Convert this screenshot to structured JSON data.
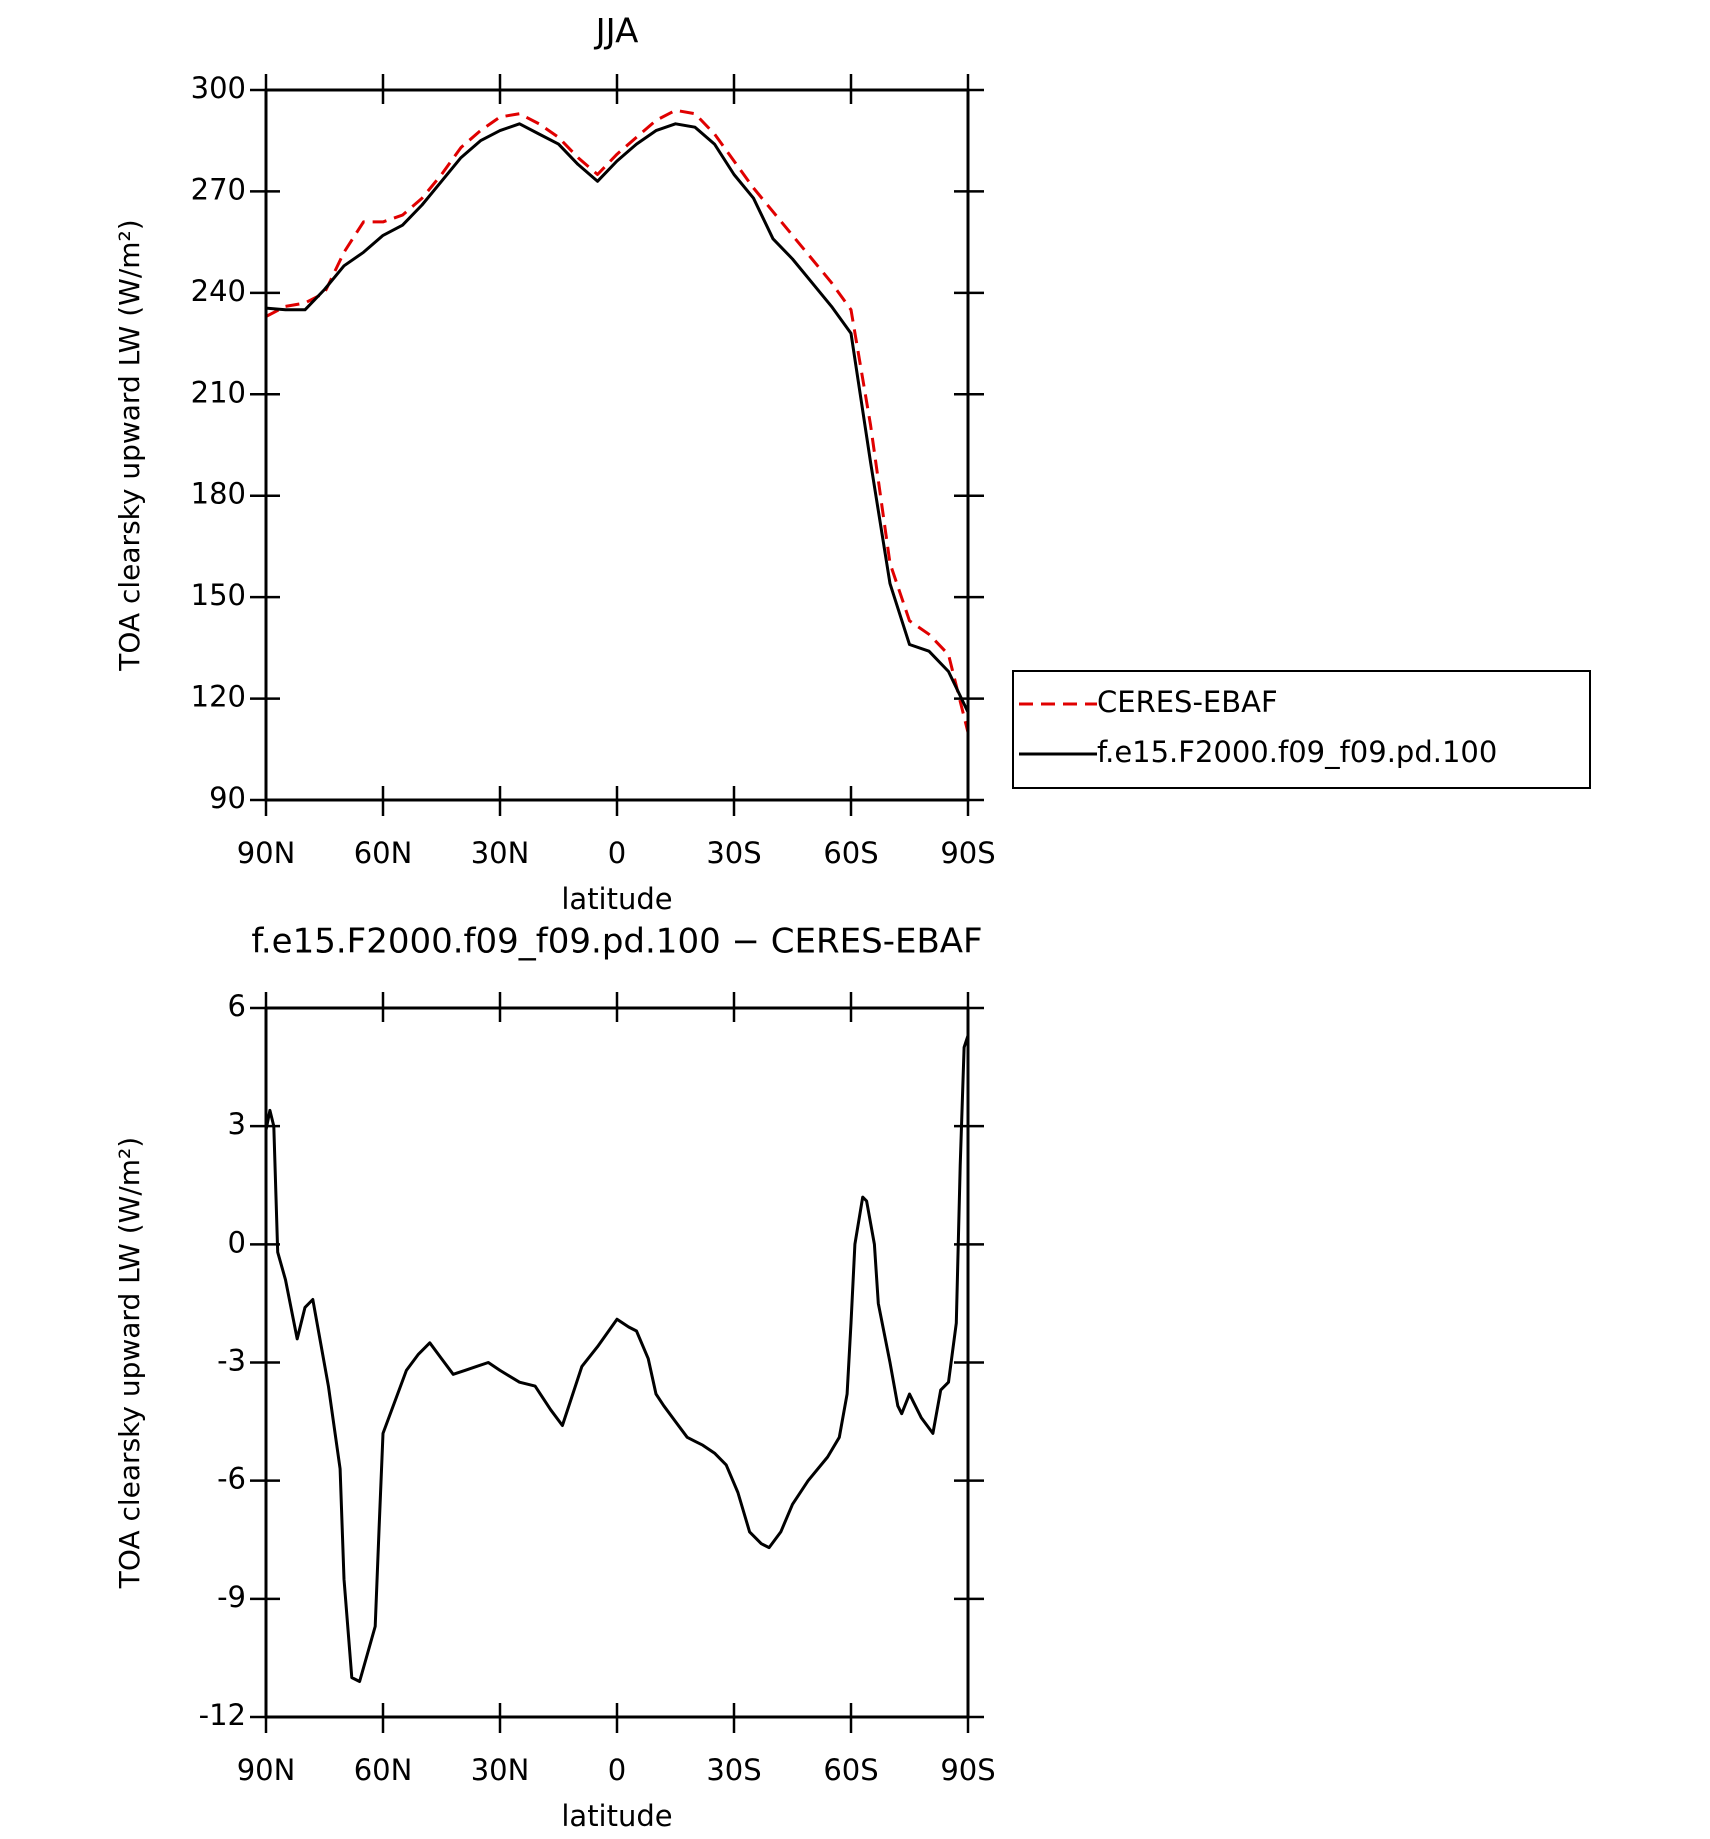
{
  "chart_data": [
    {
      "type": "line",
      "title": "JJA",
      "x_label": "latitude",
      "y_label": "TOA clearsky upward LW (W/m²)",
      "x": [
        90,
        85,
        80,
        75,
        70,
        65,
        60,
        55,
        50,
        45,
        40,
        35,
        30,
        25,
        20,
        15,
        10,
        5,
        0,
        -5,
        -10,
        -15,
        -20,
        -25,
        -30,
        -35,
        -40,
        -45,
        -50,
        -55,
        -60,
        -65,
        -70,
        -75,
        -80,
        -85,
        -90
      ],
      "series": [
        {
          "name": "CERES-EBAF",
          "color": "#e00000",
          "linestyle": "dashed",
          "values": [
            233,
            236,
            237,
            240,
            252,
            261,
            261,
            263,
            268,
            275,
            283,
            288,
            292,
            293,
            290,
            286,
            280,
            275,
            281,
            286,
            291,
            294,
            293,
            287,
            279,
            271,
            264,
            257,
            250,
            243,
            235,
            201,
            160,
            143,
            139,
            133,
            110
          ]
        },
        {
          "name": "f.e15.F2000.f09_f09.pd.100",
          "color": "#000000",
          "linestyle": "solid",
          "values": [
            235.5,
            235,
            235,
            241,
            248,
            252,
            257,
            260,
            266,
            273,
            280,
            285,
            288,
            290,
            287,
            284,
            278,
            273,
            279,
            284,
            288,
            290,
            289,
            284,
            275,
            268,
            256,
            250,
            243,
            236,
            228,
            190,
            154,
            136,
            134,
            128,
            116
          ]
        }
      ],
      "xlim": [
        90,
        -90
      ],
      "xticks": [
        {
          "value": 90,
          "label": "90N"
        },
        {
          "value": 60,
          "label": "60N"
        },
        {
          "value": 30,
          "label": "30N"
        },
        0,
        {
          "value": -30,
          "label": "30S"
        },
        {
          "value": -60,
          "label": "60S"
        },
        {
          "value": -90,
          "label": "90S"
        }
      ],
      "ylim": [
        90,
        300
      ],
      "yticks": [
        90,
        120,
        150,
        180,
        210,
        240,
        270,
        300
      ],
      "legend": "outside right"
    },
    {
      "type": "line",
      "title": "f.e15.F2000.f09_f09.pd.100 − CERES-EBAF",
      "x_label": "latitude",
      "y_label": "TOA clearsky upward LW (W/m²)",
      "x": [
        90,
        89,
        88,
        87,
        85,
        82,
        80,
        78,
        76,
        74,
        71,
        70,
        68,
        66,
        64,
        62,
        61,
        60,
        57,
        54,
        51,
        48,
        45,
        42,
        39,
        36,
        33,
        30,
        25,
        21,
        17,
        14,
        9,
        5,
        0,
        -3,
        -5,
        -8,
        -10,
        -12,
        -15,
        -18,
        -20,
        -22,
        -25,
        -28,
        -31,
        -34,
        -37,
        -39,
        -42,
        -45,
        -49,
        -54,
        -57,
        -59,
        -60,
        -61,
        -63,
        -64,
        -66,
        -67,
        -70,
        -72,
        -73,
        -75,
        -76,
        -78,
        -81,
        -83,
        -85,
        -87,
        -88,
        -89,
        -90
      ],
      "series": [
        {
          "color": "#000000",
          "linestyle": "solid",
          "values": [
            2.9,
            3.4,
            3.0,
            -0.2,
            -0.9,
            -2.4,
            -1.6,
            -1.4,
            -2.5,
            -3.6,
            -5.7,
            -8.5,
            -11.0,
            -11.1,
            -10.4,
            -9.7,
            -7.2,
            -4.8,
            -4.0,
            -3.2,
            -2.8,
            -2.5,
            -2.9,
            -3.3,
            -3.2,
            -3.1,
            -3.0,
            -3.2,
            -3.5,
            -3.6,
            -4.2,
            -4.6,
            -3.1,
            -2.6,
            -1.9,
            -2.1,
            -2.2,
            -2.9,
            -3.8,
            -4.1,
            -4.5,
            -4.9,
            -5.0,
            -5.1,
            -5.3,
            -5.6,
            -6.3,
            -7.3,
            -7.6,
            -7.7,
            -7.3,
            -6.6,
            -6.0,
            -5.4,
            -4.9,
            -3.8,
            -2.0,
            0.0,
            1.2,
            1.1,
            0.0,
            -1.5,
            -3.0,
            -4.1,
            -4.3,
            -3.8,
            -4.0,
            -4.4,
            -4.8,
            -3.7,
            -3.5,
            -2.0,
            2.0,
            5.0,
            5.3
          ]
        }
      ],
      "xlim": [
        90,
        -90
      ],
      "xticks": [
        {
          "value": 90,
          "label": "90N"
        },
        {
          "value": 60,
          "label": "60N"
        },
        {
          "value": 30,
          "label": "30N"
        },
        0,
        {
          "value": -30,
          "label": "30S"
        },
        {
          "value": -60,
          "label": "60S"
        },
        {
          "value": -90,
          "label": "90S"
        }
      ],
      "ylim": [
        -12,
        6
      ],
      "yticks": [
        -12,
        -9,
        -6,
        -3,
        0,
        3,
        6
      ]
    }
  ]
}
